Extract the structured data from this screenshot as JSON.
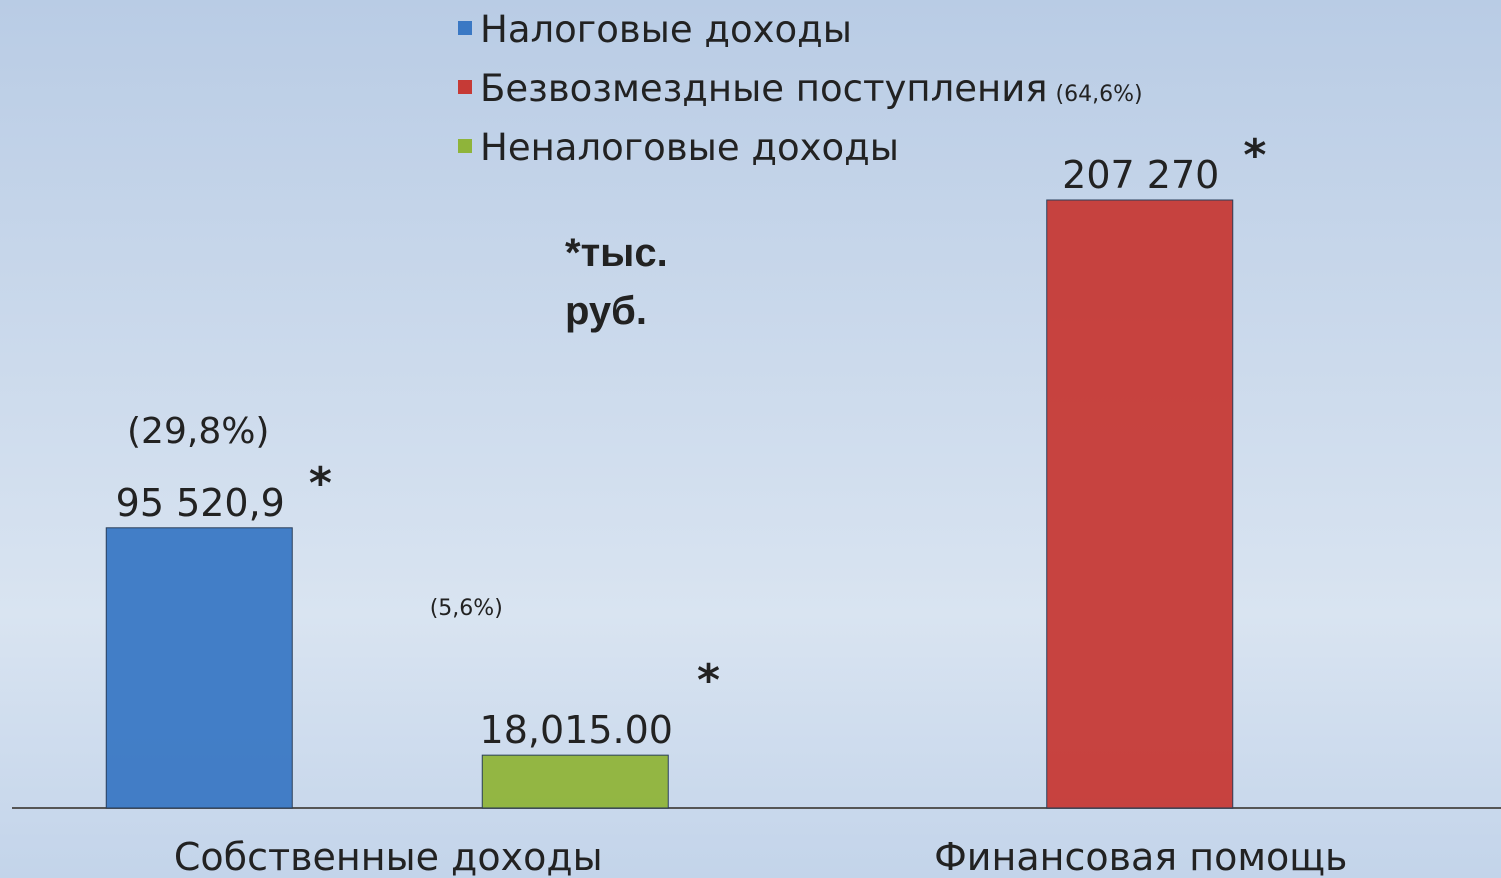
{
  "chart_data": {
    "type": "bar",
    "categories": [
      "Собственные доходы",
      "Финансовая помощь"
    ],
    "series": [
      {
        "name": "Налоговые доходы",
        "color": "#3a78c4",
        "values": [
          95520.9,
          null
        ],
        "value_labels": [
          "95 520,9",
          null
        ]
      },
      {
        "name": "Безвозмездные поступления",
        "color": "#c63a36",
        "values": [
          null,
          207270
        ],
        "value_labels": [
          null,
          "207 270"
        ]
      },
      {
        "name": "Неналоговые доходы",
        "color": "#8fb43a",
        "values": [
          18015,
          null
        ],
        "value_labels": [
          "18,015.00",
          null
        ]
      }
    ],
    "percent_labels": [
      "(29,8%)",
      "(64,6%)",
      "(5,6%)"
    ],
    "asterisk": "*",
    "unit_note": [
      "*тыс.",
      "руб."
    ],
    "ylim": [
      0,
      207270
    ],
    "legend": "top"
  }
}
